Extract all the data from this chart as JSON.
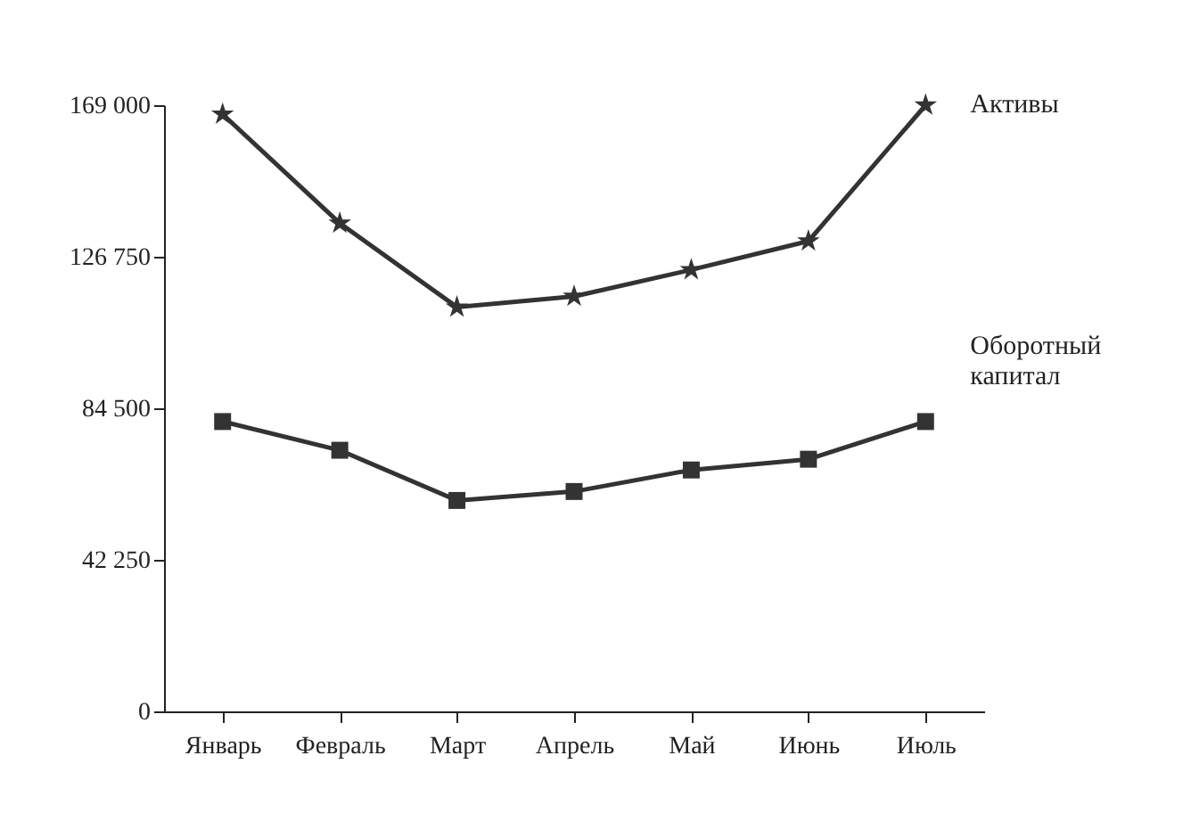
{
  "chart_data": {
    "type": "line",
    "categories": [
      "Январь",
      "Февраль",
      "Март",
      "Апрель",
      "Май",
      "Июнь",
      "Июль"
    ],
    "series": [
      {
        "name": "Активы",
        "color": "#333333",
        "marker": "star",
        "values": [
          166500,
          136100,
          112700,
          115700,
          123100,
          131100,
          169000
        ]
      },
      {
        "name": "Оборотный капитал",
        "color": "#333333",
        "marker": "square",
        "values": [
          80800,
          72800,
          58800,
          61300,
          67300,
          70300,
          80800
        ]
      }
    ],
    "ylim": [
      0,
      169000
    ],
    "yticks": [
      0,
      {
        "value": 42250,
        "label": "42 250"
      },
      {
        "value": 84500,
        "label": "84 500"
      },
      {
        "value": 126750,
        "label": "126 750"
      },
      {
        "value": 169000,
        "label": "169 000"
      }
    ],
    "line_style": "solid"
  }
}
